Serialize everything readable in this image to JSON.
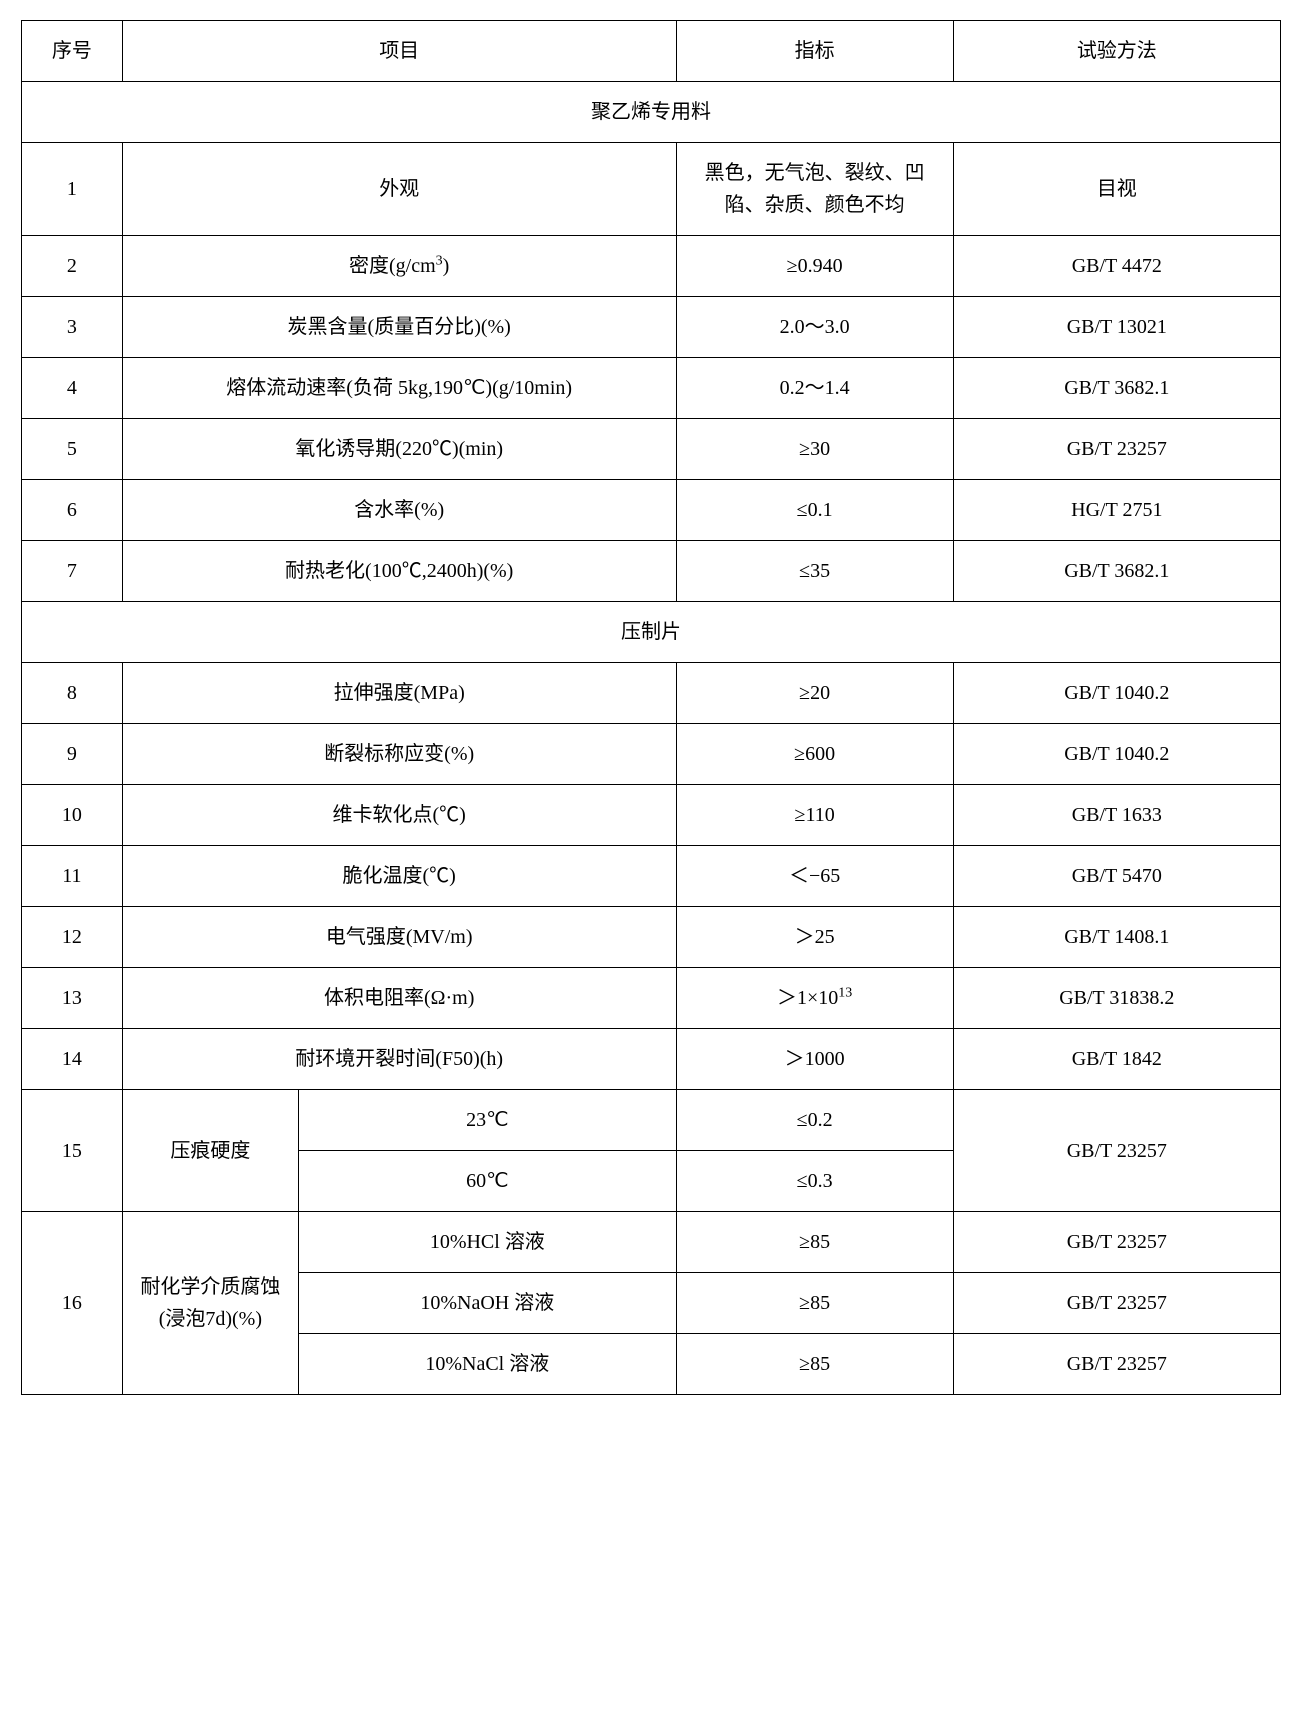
{
  "table": {
    "headers": {
      "seq": "序号",
      "item": "项目",
      "spec": "指标",
      "method": "试验方法"
    },
    "section1": {
      "title": "聚乙烯专用料"
    },
    "rows": [
      {
        "seq": "1",
        "item": "外观",
        "spec": "黑色，无气泡、裂纹、凹陷、杂质、颜色不均",
        "method": "目视"
      },
      {
        "seq": "2",
        "item_html": "密度(g/cm<sup>3</sup>)",
        "spec": "≥0.940",
        "method": "GB/T 4472"
      },
      {
        "seq": "3",
        "item": "炭黑含量(质量百分比)(%)",
        "spec": "2.0～3.0",
        "method": "GB/T 13021"
      },
      {
        "seq": "4",
        "item": "熔体流动速率(负荷 5kg,190℃)(g/10min)",
        "spec": "0.2～1.4",
        "method": "GB/T 3682.1"
      },
      {
        "seq": "5",
        "item": "氧化诱导期(220℃)(min)",
        "spec": "≥30",
        "method": "GB/T 23257"
      },
      {
        "seq": "6",
        "item": "含水率(%)",
        "spec": "≤0.1",
        "method": "HG/T 2751"
      },
      {
        "seq": "7",
        "item": "耐热老化(100℃,2400h)(%)",
        "spec": "≤35",
        "method": "GB/T 3682.1"
      }
    ],
    "section2": {
      "title": "压制片"
    },
    "rows2": [
      {
        "seq": "8",
        "item": "拉伸强度(MPa)",
        "spec": "≥20",
        "method": "GB/T 1040.2"
      },
      {
        "seq": "9",
        "item": "断裂标称应变(%)",
        "spec": "≥600",
        "method": "GB/T 1040.2"
      },
      {
        "seq": "10",
        "item": "维卡软化点(℃)",
        "spec": "≥110",
        "method": "GB/T 1633"
      },
      {
        "seq": "11",
        "item": "脆化温度(℃)",
        "spec": "＜−65",
        "method": "GB/T 5470"
      },
      {
        "seq": "12",
        "item": "电气强度(MV/m)",
        "spec": "＞25",
        "method": "GB/T 1408.1"
      },
      {
        "seq": "13",
        "item": "体积电阻率(Ω·m)",
        "spec_html": "＞1×10<sup>13</sup>",
        "method": "GB/T 31838.2"
      },
      {
        "seq": "14",
        "item": "耐环境开裂时间(F50)(h)",
        "spec": "＞1000",
        "method": "GB/T 1842"
      }
    ],
    "row15": {
      "seq": "15",
      "label": "压痕硬度",
      "sub1": {
        "cond": "23℃",
        "spec": "≤0.2"
      },
      "sub2": {
        "cond": "60℃",
        "spec": "≤0.3"
      },
      "method": "GB/T 23257"
    },
    "row16": {
      "seq": "16",
      "label": "耐化学介质腐蚀(浸泡7d)(%)",
      "sub1": {
        "cond": "10%HCl 溶液",
        "spec": "≥85",
        "method": "GB/T 23257"
      },
      "sub2": {
        "cond": "10%NaOH 溶液",
        "spec": "≥85",
        "method": "GB/T 23257"
      },
      "sub3": {
        "cond": "10%NaCl 溶液",
        "spec": "≥85",
        "method": "GB/T 23257"
      }
    }
  },
  "styling": {
    "border_color": "#000000",
    "border_width": 1.5,
    "background_color": "#ffffff",
    "text_color": "#000000",
    "font_family": "SimSun",
    "base_font_size": 20,
    "col_widths_pct": [
      8,
      44,
      22,
      26
    ],
    "sub_col_widths_pct": [
      14,
      30
    ],
    "cell_padding_v": 14,
    "cell_padding_h": 8,
    "line_height": 1.6
  }
}
